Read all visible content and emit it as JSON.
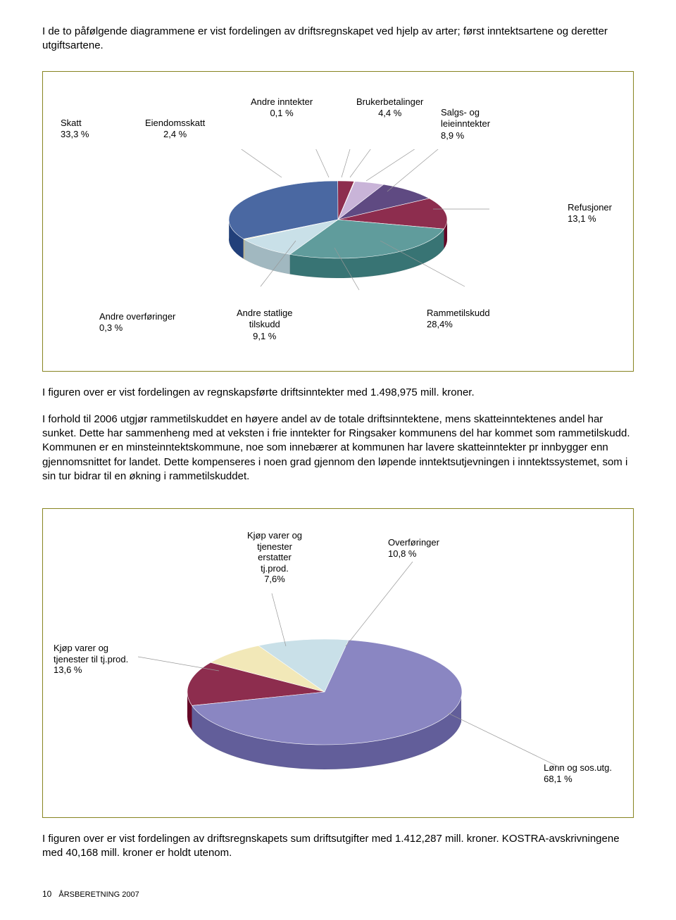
{
  "intro": "I de to påfølgende diagrammene er vist fordelingen av driftsregnskapet ved hjelp av arter; først inntektsartene og deretter utgiftsartene.",
  "chart1": {
    "type": "pie",
    "labels": {
      "skatt": "Skatt\n33,3 %",
      "eiendomsskatt": "Eiendomsskatt\n2,4 %",
      "andre_inntekter": "Andre inntekter\n0,1 %",
      "brukerbetalinger": "Brukerbetalinger\n4,4 %",
      "salgs_leie": "Salgs- og\nleieinntekter\n8,9 %",
      "refusjoner": "Refusjoner\n13,1 %",
      "rammetilskudd": "Rammetilskudd\n28,4%",
      "andre_statlige": "Andre statlige\ntilskudd\n9,1 %",
      "andre_overforinger": "Andre overføringer\n0,3 %"
    },
    "slices": [
      {
        "name": "skatt",
        "value": 33.3,
        "color": "#4a68a2"
      },
      {
        "name": "eiendomsskatt",
        "value": 2.4,
        "color": "#8d2d4e"
      },
      {
        "name": "andre_inntekter",
        "value": 0.1,
        "color": "#f2e8b8"
      },
      {
        "name": "brukerbetalinger",
        "value": 4.4,
        "color": "#c9b4d8"
      },
      {
        "name": "salgs_leie",
        "value": 8.9,
        "color": "#5f4a82"
      },
      {
        "name": "refusjoner",
        "value": 13.1,
        "color": "#8d2d4e"
      },
      {
        "name": "rammetilskudd",
        "value": 28.4,
        "color": "#609c9c"
      },
      {
        "name": "andre_statlige",
        "value": 9.1,
        "color": "#c9e0e8"
      },
      {
        "name": "andre_overforinger",
        "value": 0.3,
        "color": "#f2e8b8"
      }
    ],
    "depth_color": "#3a5282",
    "border_color": "#878420"
  },
  "mid_text_1": "I figuren over er vist fordelingen av regnskapsførte driftsinntekter med 1.498,975 mill. kroner.",
  "mid_text_2": "I forhold til 2006 utgjør rammetilskuddet en høyere andel av de totale driftsinntektene, mens skatteinntektenes andel har sunket. Dette har sammenheng med at veksten i frie inntekter for Ringsaker kommunens del har kommet som rammetilskudd. Kommunen er en minsteinntektskommune, noe som innebærer at kommunen har lavere skatteinntekter pr innbygger enn gjennomsnittet for landet. Dette kompenseres i noen grad gjennom den løpende inntektsutjevningen i inntektssystemet, som i sin tur bidrar til en økning i rammetilskuddet.",
  "chart2": {
    "type": "pie",
    "labels": {
      "kjop_erstatter": "Kjøp varer og\ntjenester\nerstatter\ntj.prod.\n7,6%",
      "overforinger": "Overføringer\n10,8 %",
      "kjop_til": "Kjøp varer og\ntjenester til tj.prod.\n13,6 %",
      "lonn": "Lønn og sos.utg.\n68,1 %"
    },
    "slices": [
      {
        "name": "kjop_til",
        "value": 13.6,
        "color": "#8d2d4e"
      },
      {
        "name": "kjop_erstatter",
        "value": 7.6,
        "color": "#f2e8b8"
      },
      {
        "name": "overforinger",
        "value": 10.8,
        "color": "#c9e0e8"
      },
      {
        "name": "lonn",
        "value": 68.1,
        "color": "#8a86c2"
      }
    ],
    "depth_color": "#6b2040",
    "border_color": "#878420"
  },
  "end_text": "I figuren over er vist fordelingen av driftsregnskapets sum driftsutgifter med 1.412,287 mill. kroner. KOSTRA-avskrivningene med 40,168 mill. kroner er holdt utenom.",
  "footer": {
    "page": "10",
    "title": "ÅRSBERETNING 2007"
  }
}
